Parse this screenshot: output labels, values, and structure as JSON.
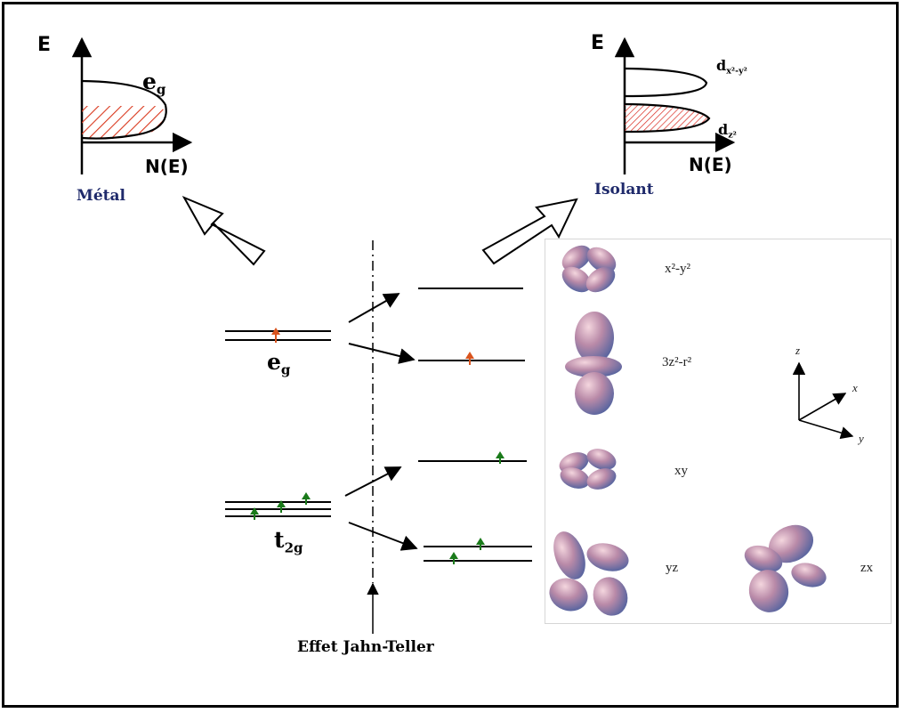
{
  "metal": {
    "axis_e": "E",
    "axis_n": "N(E)",
    "band_label": "e",
    "band_sub": "g",
    "caption": "Métal"
  },
  "isolant": {
    "axis_e": "E",
    "axis_n": "N(E)",
    "upper_label": "d",
    "upper_sub": "x²-y²",
    "lower_label": "d",
    "lower_sub": "z²",
    "caption": "Isolant"
  },
  "levels": {
    "eg_label": "e",
    "eg_sub": "g",
    "t2g_label": "t",
    "t2g_sub": "2g",
    "jahn_teller": "Effet Jahn-Teller"
  },
  "orbitals": {
    "x2y2": "x²-y²",
    "z2": "3z²-r²",
    "xy": "xy",
    "yz": "yz",
    "zx": "zx"
  },
  "axes3d": {
    "z": "z",
    "x": "x",
    "y": "y"
  },
  "colors": {
    "hatch_red": "#d9381e",
    "electron_orange": "#d9541e",
    "electron_green": "#1a7a1a",
    "caption_navy": "#1f2a6b"
  }
}
